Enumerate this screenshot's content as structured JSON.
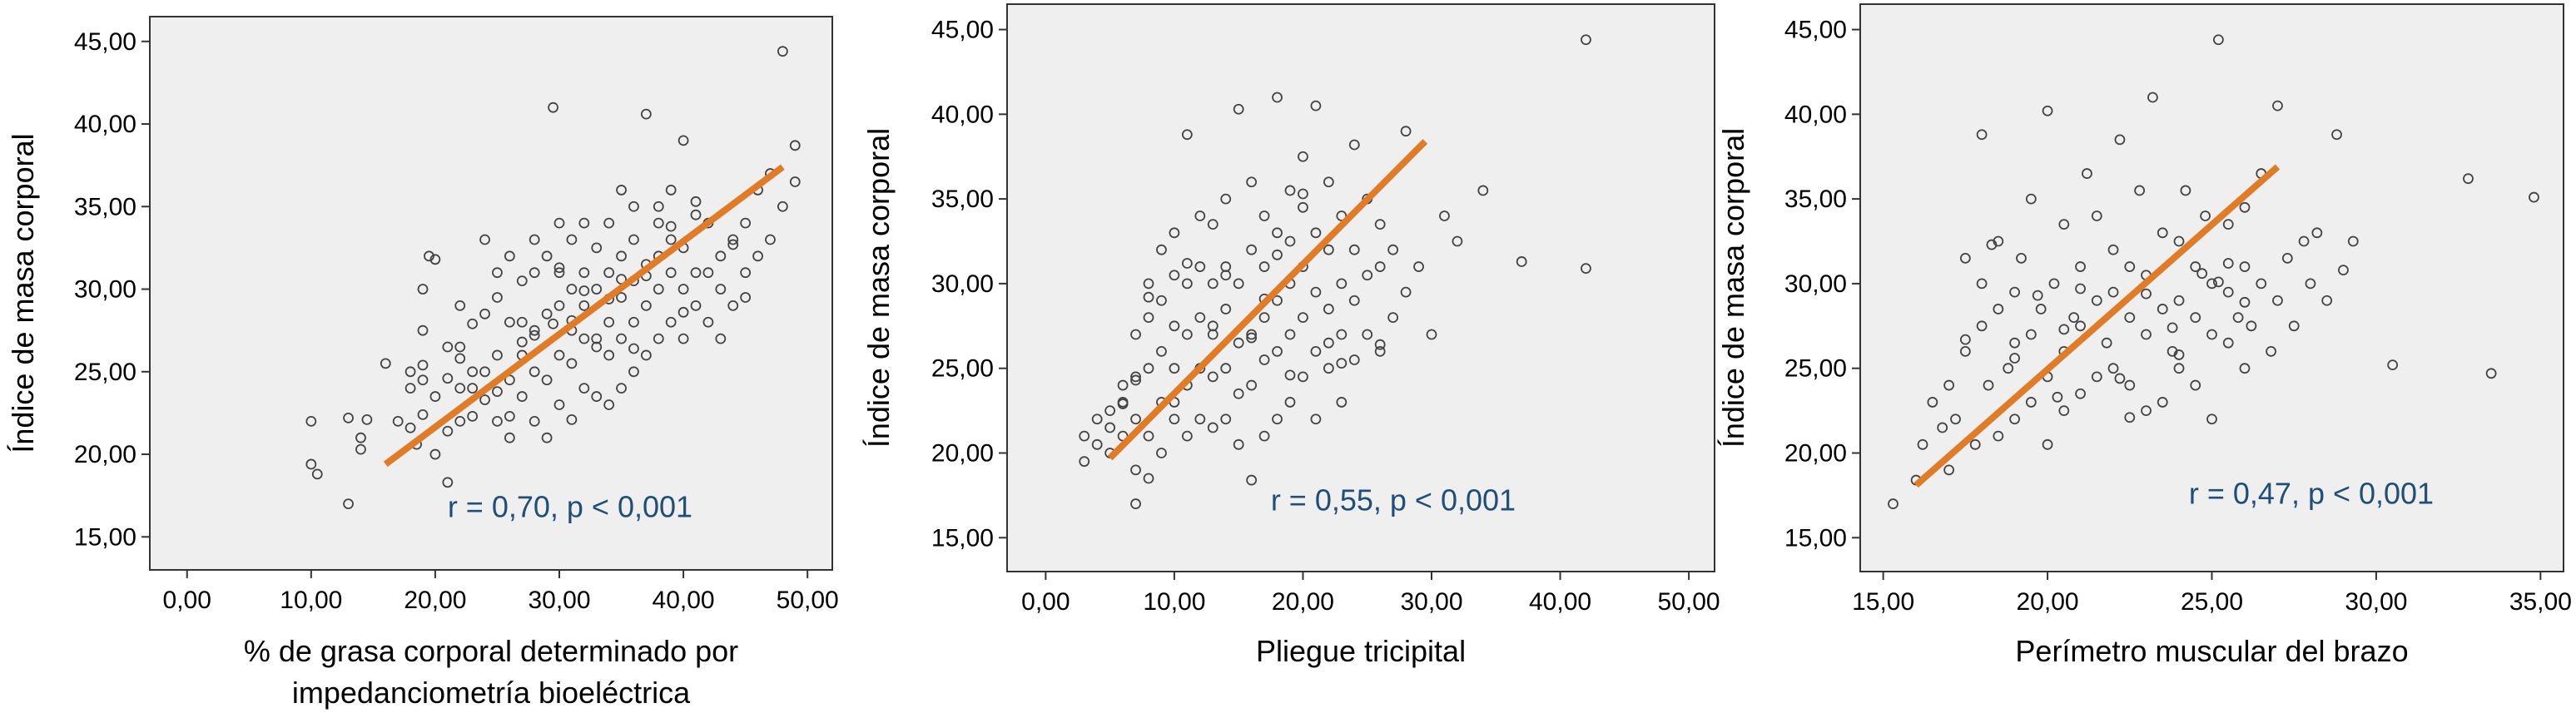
{
  "colors": {
    "plot_bg": "#efefef",
    "frame": "#333333",
    "point": "#444444",
    "fit_line": "#e07b27",
    "annotation": "#1f4e79"
  },
  "chart_data": [
    {
      "type": "scatter",
      "title": "",
      "xlabel": "% de grasa corporal determinado por impedanciometría bioeléctrica",
      "xlabel_lines": [
        "% de grasa corporal determinado por",
        "impedanciometría bioeléctrica"
      ],
      "ylabel": "Índice de masa corporal",
      "xlim": [
        -3,
        52
      ],
      "ylim": [
        13,
        46.5
      ],
      "xticks": [
        0,
        10,
        20,
        30,
        40,
        50
      ],
      "xtick_labels": [
        "0,00",
        "10,00",
        "20,00",
        "30,00",
        "40,00",
        "50,00"
      ],
      "yticks": [
        15,
        20,
        25,
        30,
        35,
        40,
        45
      ],
      "ytick_labels": [
        "15,00",
        "20,00",
        "25,00",
        "30,00",
        "35,00",
        "40,00",
        "45,00"
      ],
      "annotation": "r = 0,70, p < 0,001",
      "annotation_pos": [
        21,
        16.2
      ],
      "fit_line": {
        "x": [
          16,
          48
        ],
        "y": [
          19.4,
          37.4
        ]
      },
      "points": {
        "x": [
          10,
          10,
          10.5,
          13,
          13,
          14,
          14,
          14.5,
          16,
          17,
          18,
          18,
          19,
          19,
          19.5,
          18.5,
          18,
          19,
          19,
          19,
          20,
          20,
          21,
          21,
          21,
          22,
          22,
          22,
          22,
          23,
          23,
          23,
          24,
          24,
          24,
          25,
          25,
          25,
          25,
          26,
          26,
          26,
          26,
          27,
          27,
          27,
          27,
          28,
          28,
          28,
          28,
          28,
          29,
          29,
          29,
          29,
          29.5,
          30,
          30,
          30,
          30,
          30,
          31,
          31,
          31,
          31,
          31,
          32,
          32,
          32,
          32,
          32,
          33,
          33,
          33,
          33,
          34,
          34,
          34,
          34,
          34,
          35,
          35,
          35,
          35,
          35,
          36,
          36,
          36,
          36,
          36,
          37,
          37,
          37,
          37,
          38,
          38,
          38,
          38,
          38,
          39,
          39,
          39,
          39,
          40,
          40,
          40,
          40,
          41,
          41,
          41,
          42,
          42,
          42,
          43,
          43,
          43,
          44,
          44,
          45,
          45,
          45,
          46,
          46,
          47,
          47,
          48,
          48,
          49,
          49,
          36,
          31,
          29.5,
          22,
          20,
          27,
          24,
          34,
          30,
          33,
          37,
          44,
          39,
          26,
          35,
          28,
          41,
          23,
          32,
          40,
          25,
          21
        ],
        "y": [
          22,
          19.4,
          18.8,
          22.2,
          17,
          20.3,
          21,
          22.1,
          25.5,
          22,
          25,
          24,
          27.5,
          30,
          32,
          20.6,
          21.6,
          22.4,
          24.5,
          25.4,
          23.5,
          31.8,
          18.3,
          24.6,
          26.5,
          22,
          24,
          26.5,
          29,
          24,
          25,
          27.9,
          25,
          28.5,
          33,
          22,
          26,
          29.5,
          31,
          21,
          24.5,
          28,
          32,
          23.5,
          26,
          28,
          30.5,
          22,
          25,
          27.5,
          31,
          33,
          21,
          24.5,
          28.5,
          32,
          41,
          23,
          26,
          29,
          31,
          34,
          22.1,
          25.5,
          27.5,
          30,
          33,
          24,
          27,
          29,
          31,
          34,
          23.5,
          26.5,
          30,
          32.5,
          23,
          26,
          28,
          31,
          34,
          24,
          27,
          29.5,
          32,
          36,
          25,
          28,
          30.5,
          33,
          35,
          26,
          29,
          31.5,
          40.6,
          27,
          30,
          32,
          34,
          35,
          28,
          31,
          33,
          36,
          27,
          30,
          32.5,
          39,
          29,
          31,
          34.5,
          28,
          31,
          34,
          27,
          30,
          32,
          29,
          33,
          29.5,
          31,
          34,
          32,
          36,
          33,
          37,
          35,
          44.4,
          36.5,
          38.7,
          26.4,
          28.1,
          27.9,
          25.8,
          20,
          26.8,
          23.3,
          29.4,
          31.3,
          27,
          30.8,
          32.7,
          33.8,
          22.3,
          30.6,
          27.2,
          35.3,
          22.3,
          29.9,
          28.6,
          23.8,
          21.4
        ]
      }
    },
    {
      "type": "scatter",
      "title": "",
      "xlabel": "Pliegue tricipital",
      "ylabel": "Índice de masa corporal",
      "xlim": [
        -3,
        52
      ],
      "ylim": [
        13,
        46.5
      ],
      "xticks": [
        0,
        10,
        20,
        30,
        40,
        50
      ],
      "xtick_labels": [
        "0,00",
        "10,00",
        "20,00",
        "30,00",
        "40,00",
        "50,00"
      ],
      "yticks": [
        15,
        20,
        25,
        30,
        35,
        40,
        45
      ],
      "ytick_labels": [
        "15,00",
        "20,00",
        "25,00",
        "30,00",
        "35,00",
        "40,00",
        "45,00"
      ],
      "annotation": "r = 0,55, p < 0,001",
      "annotation_pos": [
        17.5,
        16.6
      ],
      "fit_line": {
        "x": [
          5,
          29.5
        ],
        "y": [
          19.7,
          38.4
        ]
      },
      "points": {
        "x": [
          3,
          3,
          4,
          4,
          5,
          5,
          5,
          6,
          6,
          6,
          7,
          7,
          7,
          7,
          7,
          8,
          8,
          8,
          8,
          8,
          9,
          9,
          9,
          9,
          9,
          10,
          10,
          10,
          10,
          10,
          11,
          11,
          11,
          11,
          11,
          12,
          12,
          12,
          12,
          12,
          13,
          13,
          13,
          13,
          13,
          14,
          14,
          14,
          14,
          14,
          15,
          15,
          15,
          15,
          15,
          16,
          16,
          16,
          16,
          16,
          17,
          17,
          17,
          17,
          17,
          18,
          18,
          18,
          18,
          18,
          19,
          19,
          19,
          19,
          19,
          20,
          20,
          20,
          20,
          20,
          21,
          21,
          21,
          21,
          21,
          22,
          22,
          22,
          22,
          23,
          23,
          23,
          23,
          24,
          24,
          24,
          24,
          25,
          25,
          25,
          26,
          26,
          26,
          27,
          27,
          28,
          28,
          29,
          30,
          31,
          32,
          34,
          37,
          42,
          42,
          7,
          16,
          19,
          26,
          8,
          6,
          11,
          13,
          17,
          20,
          23,
          14,
          10,
          22,
          18
        ],
        "y": [
          19.5,
          21,
          20.5,
          22,
          21.5,
          22.5,
          20,
          21,
          23,
          24,
          17,
          19,
          22,
          24.5,
          27,
          18.5,
          21,
          25,
          28,
          30,
          20,
          23,
          26,
          29,
          32,
          22,
          25,
          27.5,
          30.5,
          33,
          21,
          24,
          27,
          30,
          38.8,
          22,
          25,
          28,
          31,
          34,
          21.5,
          24.5,
          27.5,
          30,
          33.5,
          22,
          25,
          28.5,
          31,
          35,
          20.5,
          23.5,
          26.5,
          30,
          40.3,
          18.4,
          24,
          27,
          32,
          36,
          21,
          25.5,
          28,
          31,
          34,
          22,
          26,
          29,
          33,
          41,
          23,
          27,
          30,
          32.5,
          35.5,
          24.5,
          28,
          31,
          34.5,
          37.5,
          22,
          26,
          29.5,
          33,
          40.5,
          25,
          28.5,
          32,
          36,
          23,
          27,
          30,
          34,
          25.5,
          29,
          32,
          38.2,
          27,
          30.5,
          35,
          26,
          31,
          33.5,
          28,
          32,
          29.5,
          39,
          31,
          27,
          34,
          32.5,
          35.5,
          31.3,
          44.4,
          30.9,
          24.3,
          26.8,
          24.6,
          26.4,
          29.2,
          22.9,
          31.2,
          27,
          29.1,
          35.3,
          25.3,
          30.5,
          23,
          26.5,
          31.7
        ]
      }
    },
    {
      "type": "scatter",
      "title": "",
      "xlabel": "Perímetro muscular del brazo",
      "ylabel": "Índice de masa corporal",
      "xlim": [
        14.3,
        35.7
      ],
      "ylim": [
        13,
        46.5
      ],
      "xticks": [
        15,
        20,
        25,
        30,
        35
      ],
      "xtick_labels": [
        "15,00",
        "20,00",
        "25,00",
        "30,00",
        "35,00"
      ],
      "yticks": [
        15,
        20,
        25,
        30,
        35,
        40,
        45
      ],
      "ytick_labels": [
        "15,00",
        "20,00",
        "25,00",
        "30,00",
        "35,00",
        "40,00",
        "45,00"
      ],
      "annotation": "r = 0,47, p < 0,001",
      "annotation_pos": [
        24.3,
        17
      ],
      "fit_line": {
        "x": [
          16,
          27
        ],
        "y": [
          18.1,
          36.9
        ]
      },
      "points": {
        "x": [
          15.3,
          16,
          16.2,
          16.5,
          16.8,
          17,
          17,
          17.2,
          17.5,
          17.5,
          17.8,
          18,
          18,
          18,
          18.2,
          18.5,
          18.5,
          18.5,
          18.8,
          19,
          19,
          19,
          19.2,
          19.5,
          19.5,
          19.5,
          19.8,
          20,
          20,
          20,
          20.2,
          20.5,
          20.5,
          20.5,
          20.8,
          21,
          21,
          21,
          21.2,
          21.5,
          21.5,
          21.5,
          21.8,
          22,
          22,
          22,
          22.2,
          22.5,
          22.5,
          22.5,
          22.8,
          23,
          23,
          23,
          23.2,
          23.5,
          23.5,
          23.5,
          23.8,
          24,
          24,
          24,
          24.2,
          24.5,
          24.5,
          24.5,
          24.8,
          25,
          25,
          25,
          25.2,
          25.5,
          25.5,
          25.5,
          25.8,
          26,
          26,
          26,
          26.2,
          26.5,
          26.5,
          26.8,
          27,
          27,
          27.3,
          27.5,
          27.8,
          28,
          28.2,
          28.5,
          28.8,
          29,
          29.3,
          30.5,
          32.8,
          33.5,
          34.8,
          25.5,
          23,
          17.5,
          20.5,
          22.5,
          19,
          24,
          21,
          26,
          18.3,
          23.8,
          20.3,
          22.2,
          25.2,
          19.7,
          24.7
        ],
        "y": [
          17,
          18.4,
          20.5,
          23,
          21.5,
          19,
          24,
          22,
          26,
          31.5,
          20.5,
          27.5,
          30,
          38.8,
          24,
          21,
          28.5,
          32.5,
          25,
          22,
          26.5,
          29.5,
          31.5,
          23,
          27,
          35,
          28.5,
          20.5,
          24.5,
          40.2,
          30,
          22.5,
          26,
          33.5,
          28,
          23.5,
          27.5,
          31,
          36.5,
          24.5,
          29,
          34,
          26.5,
          25,
          29.5,
          32,
          38.5,
          24,
          28,
          31,
          35.5,
          22.5,
          27,
          30.5,
          41,
          23,
          28.5,
          33,
          26,
          25,
          29,
          32.5,
          35.5,
          24,
          28,
          31,
          34,
          22,
          27,
          30,
          44.4,
          26.5,
          29.5,
          33.5,
          28,
          25,
          31,
          34.5,
          27.5,
          30,
          36.5,
          26,
          29,
          40.5,
          31.5,
          27.5,
          32.5,
          30,
          33,
          29,
          38.8,
          30.8,
          32.5,
          25.2,
          36.2,
          24.7,
          35.1,
          31.2,
          29.4,
          26.7,
          27.3,
          22.1,
          25.6,
          25.8,
          29.7,
          28.9,
          32.3,
          27.4,
          23.3,
          24.4,
          30.1,
          29.3,
          30.6
        ]
      }
    }
  ]
}
